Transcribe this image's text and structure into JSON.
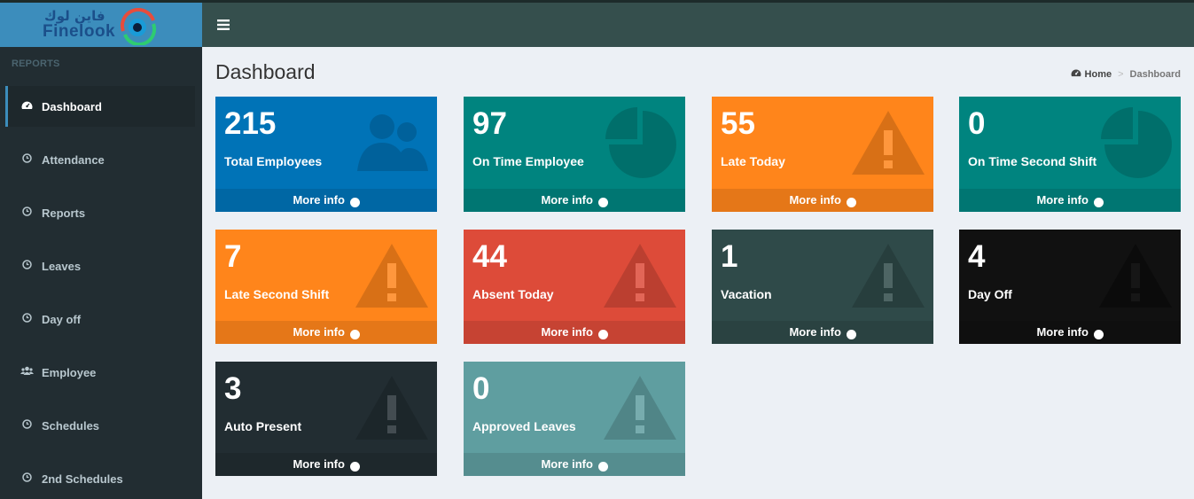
{
  "logo": {
    "arabic": "فاين لوك",
    "english": "Finelook"
  },
  "colors": {
    "blue": "#0073b7",
    "teal": "#00847f",
    "orange": "#ff851b",
    "red": "#dd4b39",
    "dark_teal": "#2f4a49",
    "black": "#111111",
    "dark": "#222d32",
    "light_teal": "#5f9ea0"
  },
  "sidebar": {
    "header": "REPORTS",
    "items": [
      {
        "label": "Dashboard",
        "icon": "dashboard-icon"
      },
      {
        "label": "Attendance",
        "icon": "clock-icon"
      },
      {
        "label": "Reports",
        "icon": "clock-icon"
      },
      {
        "label": "Leaves",
        "icon": "clock-icon"
      },
      {
        "label": "Day off",
        "icon": "clock-icon"
      },
      {
        "label": "Employee",
        "icon": "users-icon"
      },
      {
        "label": "Schedules",
        "icon": "clock-icon"
      },
      {
        "label": "2nd Schedules",
        "icon": "clock-icon"
      }
    ]
  },
  "header": {
    "menu_icon": "hamburger-icon"
  },
  "page": {
    "title": "Dashboard",
    "breadcrumb": {
      "home": "Home",
      "separator": ">",
      "current": "Dashboard"
    }
  },
  "cards": [
    {
      "value": "215",
      "label": "Total Employees",
      "more": "More info",
      "icon": "users-icon"
    },
    {
      "value": "97",
      "label": "On Time Employee",
      "more": "More info",
      "icon": "pie-chart-icon"
    },
    {
      "value": "55",
      "label": "Late Today",
      "more": "More info",
      "icon": "warning-icon"
    },
    {
      "value": "0",
      "label": "On Time Second Shift",
      "more": "More info",
      "icon": "pie-chart-icon"
    },
    {
      "value": "7",
      "label": "Late Second Shift",
      "more": "More info",
      "icon": "warning-icon"
    },
    {
      "value": "44",
      "label": "Absent Today",
      "more": "More info",
      "icon": "warning-icon"
    },
    {
      "value": "1",
      "label": "Vacation",
      "more": "More info",
      "icon": "warning-icon"
    },
    {
      "value": "4",
      "label": "Day Off",
      "more": "More info",
      "icon": "warning-icon"
    },
    {
      "value": "3",
      "label": "Auto Present",
      "more": "More info",
      "icon": "warning-icon"
    },
    {
      "value": "0",
      "label": "Approved Leaves",
      "more": "More info",
      "icon": "warning-icon"
    }
  ]
}
